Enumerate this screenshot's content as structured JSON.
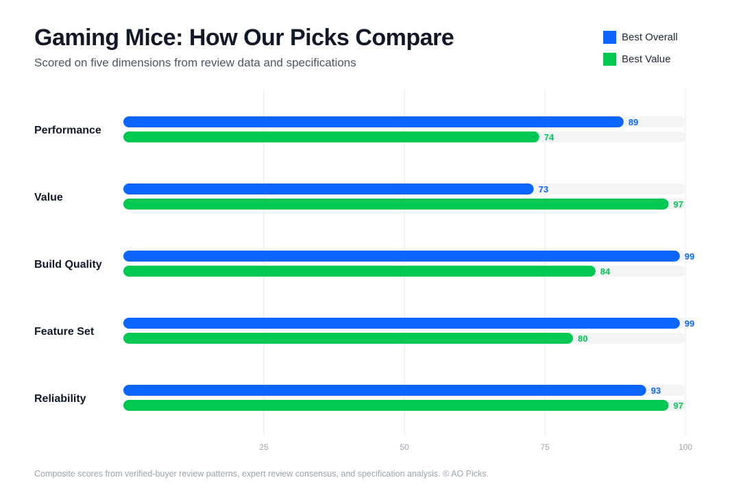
{
  "header": {
    "title": "Gaming Mice: How Our Picks Compare",
    "subtitle": "Scored on five dimensions from review data and specifications"
  },
  "legend": [
    {
      "label": "Best Overall",
      "color": "#0a66ff"
    },
    {
      "label": "Best Value",
      "color": "#00c853"
    }
  ],
  "chart_data": {
    "type": "bar",
    "orientation": "horizontal",
    "categories": [
      "Performance",
      "Value",
      "Build Quality",
      "Feature Set",
      "Reliability"
    ],
    "series": [
      {
        "name": "Best Overall",
        "color": "#0a66ff",
        "values": [
          89,
          73,
          99,
          99,
          93
        ]
      },
      {
        "name": "Best Value",
        "color": "#00c853",
        "values": [
          74,
          97,
          84,
          80,
          97
        ]
      }
    ],
    "xlim": [
      0,
      100
    ],
    "xticks": [
      25,
      50,
      75,
      100
    ],
    "grid": true,
    "legend_position": "top-right",
    "track_color": "#f3f4f6"
  },
  "footer": {
    "note": "Composite scores from verified-buyer review patterns, expert review consensus, and specification analysis. © AO Picks."
  }
}
